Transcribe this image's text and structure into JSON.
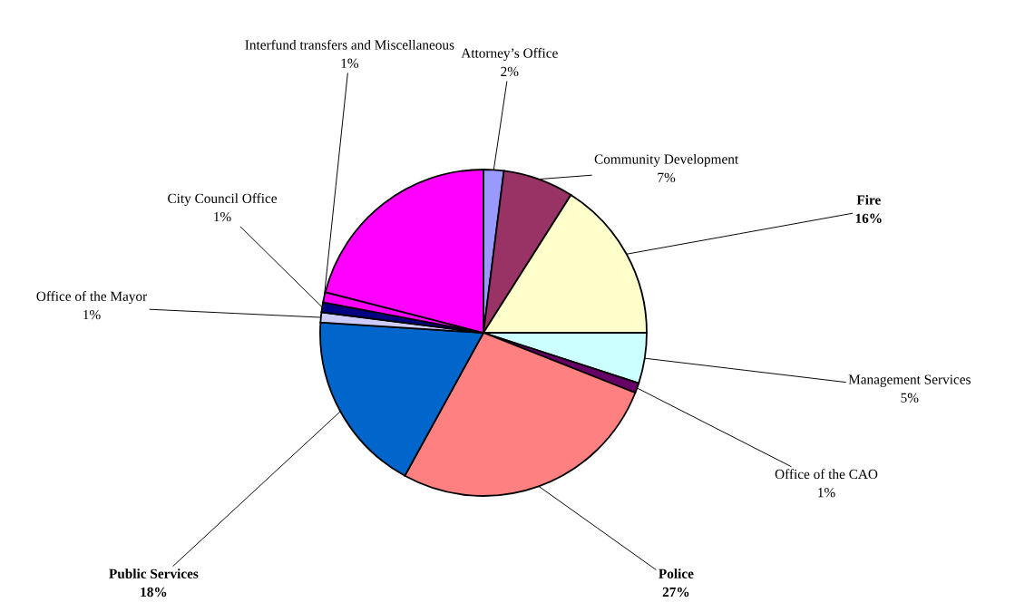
{
  "chart_data": {
    "type": "pie",
    "categories": [
      "Attorney’s Office",
      "Community Development",
      "Fire",
      "Management Services",
      "Office of the CAO",
      "Police",
      "Public Services",
      "Office of the Mayor",
      "City Council Office",
      "Interfund transfers and Miscellaneous",
      null
    ],
    "values": [
      2,
      7,
      16,
      5,
      1,
      27,
      18,
      1,
      1,
      1,
      21
    ],
    "value_labels": [
      "2%",
      "7%",
      "16%",
      "5%",
      "1%",
      "27%",
      "18%",
      "1%",
      "1%",
      "1%",
      null
    ],
    "colors": [
      "#9999ff",
      "#993366",
      "#ffffcc",
      "#ccffff",
      "#660066",
      "#ff8080",
      "#0066cc",
      "#ccccff",
      "#000080",
      "#ff00ff",
      "#ff00ff"
    ]
  }
}
